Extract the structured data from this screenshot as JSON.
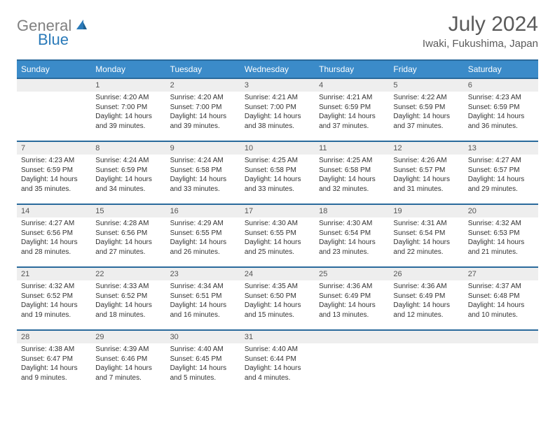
{
  "logo": {
    "gray": "General",
    "blue": "Blue"
  },
  "title": "July 2024",
  "location": "Iwaki, Fukushima, Japan",
  "colors": {
    "header_bg": "#3b8bc9",
    "header_border": "#2a6a9c",
    "daynum_bg": "#eeeeee",
    "text": "#333333",
    "logo_gray": "#808080",
    "logo_blue": "#2a7ab9"
  },
  "daysOfWeek": [
    "Sunday",
    "Monday",
    "Tuesday",
    "Wednesday",
    "Thursday",
    "Friday",
    "Saturday"
  ],
  "weeks": [
    [
      {
        "empty": true
      },
      {
        "num": "1",
        "sunrise": "4:20 AM",
        "sunset": "7:00 PM",
        "daylight": "14 hours and 39 minutes."
      },
      {
        "num": "2",
        "sunrise": "4:20 AM",
        "sunset": "7:00 PM",
        "daylight": "14 hours and 39 minutes."
      },
      {
        "num": "3",
        "sunrise": "4:21 AM",
        "sunset": "7:00 PM",
        "daylight": "14 hours and 38 minutes."
      },
      {
        "num": "4",
        "sunrise": "4:21 AM",
        "sunset": "6:59 PM",
        "daylight": "14 hours and 37 minutes."
      },
      {
        "num": "5",
        "sunrise": "4:22 AM",
        "sunset": "6:59 PM",
        "daylight": "14 hours and 37 minutes."
      },
      {
        "num": "6",
        "sunrise": "4:23 AM",
        "sunset": "6:59 PM",
        "daylight": "14 hours and 36 minutes."
      }
    ],
    [
      {
        "num": "7",
        "sunrise": "4:23 AM",
        "sunset": "6:59 PM",
        "daylight": "14 hours and 35 minutes."
      },
      {
        "num": "8",
        "sunrise": "4:24 AM",
        "sunset": "6:59 PM",
        "daylight": "14 hours and 34 minutes."
      },
      {
        "num": "9",
        "sunrise": "4:24 AM",
        "sunset": "6:58 PM",
        "daylight": "14 hours and 33 minutes."
      },
      {
        "num": "10",
        "sunrise": "4:25 AM",
        "sunset": "6:58 PM",
        "daylight": "14 hours and 33 minutes."
      },
      {
        "num": "11",
        "sunrise": "4:25 AM",
        "sunset": "6:58 PM",
        "daylight": "14 hours and 32 minutes."
      },
      {
        "num": "12",
        "sunrise": "4:26 AM",
        "sunset": "6:57 PM",
        "daylight": "14 hours and 31 minutes."
      },
      {
        "num": "13",
        "sunrise": "4:27 AM",
        "sunset": "6:57 PM",
        "daylight": "14 hours and 29 minutes."
      }
    ],
    [
      {
        "num": "14",
        "sunrise": "4:27 AM",
        "sunset": "6:56 PM",
        "daylight": "14 hours and 28 minutes."
      },
      {
        "num": "15",
        "sunrise": "4:28 AM",
        "sunset": "6:56 PM",
        "daylight": "14 hours and 27 minutes."
      },
      {
        "num": "16",
        "sunrise": "4:29 AM",
        "sunset": "6:55 PM",
        "daylight": "14 hours and 26 minutes."
      },
      {
        "num": "17",
        "sunrise": "4:30 AM",
        "sunset": "6:55 PM",
        "daylight": "14 hours and 25 minutes."
      },
      {
        "num": "18",
        "sunrise": "4:30 AM",
        "sunset": "6:54 PM",
        "daylight": "14 hours and 23 minutes."
      },
      {
        "num": "19",
        "sunrise": "4:31 AM",
        "sunset": "6:54 PM",
        "daylight": "14 hours and 22 minutes."
      },
      {
        "num": "20",
        "sunrise": "4:32 AM",
        "sunset": "6:53 PM",
        "daylight": "14 hours and 21 minutes."
      }
    ],
    [
      {
        "num": "21",
        "sunrise": "4:32 AM",
        "sunset": "6:52 PM",
        "daylight": "14 hours and 19 minutes."
      },
      {
        "num": "22",
        "sunrise": "4:33 AM",
        "sunset": "6:52 PM",
        "daylight": "14 hours and 18 minutes."
      },
      {
        "num": "23",
        "sunrise": "4:34 AM",
        "sunset": "6:51 PM",
        "daylight": "14 hours and 16 minutes."
      },
      {
        "num": "24",
        "sunrise": "4:35 AM",
        "sunset": "6:50 PM",
        "daylight": "14 hours and 15 minutes."
      },
      {
        "num": "25",
        "sunrise": "4:36 AM",
        "sunset": "6:49 PM",
        "daylight": "14 hours and 13 minutes."
      },
      {
        "num": "26",
        "sunrise": "4:36 AM",
        "sunset": "6:49 PM",
        "daylight": "14 hours and 12 minutes."
      },
      {
        "num": "27",
        "sunrise": "4:37 AM",
        "sunset": "6:48 PM",
        "daylight": "14 hours and 10 minutes."
      }
    ],
    [
      {
        "num": "28",
        "sunrise": "4:38 AM",
        "sunset": "6:47 PM",
        "daylight": "14 hours and 9 minutes."
      },
      {
        "num": "29",
        "sunrise": "4:39 AM",
        "sunset": "6:46 PM",
        "daylight": "14 hours and 7 minutes."
      },
      {
        "num": "30",
        "sunrise": "4:40 AM",
        "sunset": "6:45 PM",
        "daylight": "14 hours and 5 minutes."
      },
      {
        "num": "31",
        "sunrise": "4:40 AM",
        "sunset": "6:44 PM",
        "daylight": "14 hours and 4 minutes."
      },
      {
        "empty": true
      },
      {
        "empty": true
      },
      {
        "empty": true
      }
    ]
  ],
  "labels": {
    "sunrise_prefix": "Sunrise: ",
    "sunset_prefix": "Sunset: ",
    "daylight_prefix": "Daylight: "
  }
}
